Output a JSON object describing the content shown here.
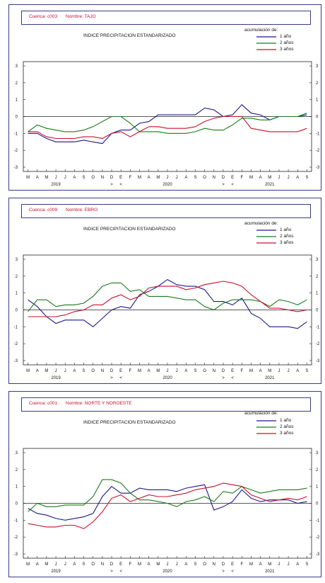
{
  "panels": [
    {
      "cuenca": "Cuenca: c003",
      "nombre": "Nombre: TAJO",
      "title": "INDICE PRECIPITACION ESTANDARIZADO",
      "legend_title": "acumulación de:",
      "chart_data": {
        "type": "line",
        "categories": [
          "M",
          "A",
          "M",
          "J",
          "J",
          "A",
          "S",
          "O",
          "N",
          "D",
          "E",
          "F",
          "M",
          "A",
          "M",
          "J",
          "J",
          "A",
          "S",
          "O",
          "N",
          "D",
          "E",
          "F",
          "M",
          "A",
          "M",
          "J",
          "J",
          "A",
          "S"
        ],
        "years": [
          "2019",
          "2020",
          "2021"
        ],
        "markers": [
          ">",
          "<",
          ">",
          "<"
        ],
        "ylim": [
          -3,
          3
        ],
        "yticks": [
          "3",
          "2",
          "1",
          "0",
          "-1",
          "-2",
          "-3"
        ],
        "series": [
          {
            "name": "1 año",
            "color": "#1a1a8c",
            "values": [
              -1.0,
              -1.0,
              -1.3,
              -1.5,
              -1.5,
              -1.5,
              -1.4,
              -1.5,
              -1.6,
              -1.0,
              -0.8,
              -0.8,
              -0.4,
              -0.3,
              0.1,
              0.1,
              0.1,
              0.1,
              0.1,
              0.5,
              0.4,
              0.0,
              0.1,
              0.7,
              0.2,
              0.1,
              -0.2,
              0.0,
              0.0,
              0.0,
              0.1
            ]
          },
          {
            "name": "2 años",
            "color": "#1a7a1a",
            "values": [
              -0.9,
              -0.5,
              -0.7,
              -0.8,
              -0.9,
              -0.9,
              -0.8,
              -0.6,
              -0.3,
              0.0,
              0.0,
              -0.4,
              -0.9,
              -0.9,
              -0.9,
              -1.0,
              -1.0,
              -1.0,
              -0.9,
              -0.7,
              -0.8,
              -0.8,
              -0.5,
              -0.1,
              -0.1,
              -0.2,
              -0.2,
              0.0,
              0.0,
              0.0,
              0.2
            ]
          },
          {
            "name": "3 años",
            "color": "#c8102e",
            "values": [
              -0.9,
              -0.9,
              -1.2,
              -1.3,
              -1.3,
              -1.3,
              -1.2,
              -1.2,
              -1.3,
              -1.0,
              -0.9,
              -1.2,
              -0.9,
              -0.6,
              -0.6,
              -0.7,
              -0.7,
              -0.7,
              -0.6,
              -0.3,
              -0.1,
              0.0,
              0.0,
              0.0,
              -0.7,
              -0.8,
              -0.9,
              -0.9,
              -0.9,
              -0.9,
              -0.7
            ]
          }
        ]
      }
    },
    {
      "cuenca": "Cuenca: c009",
      "nombre": "Nombre: EBRO",
      "title": "INDICE PRECIPITACION ESTANDARIZADO",
      "legend_title": "acumulación de:",
      "chart_data": {
        "type": "line",
        "categories": [
          "M",
          "A",
          "M",
          "J",
          "J",
          "A",
          "S",
          "O",
          "N",
          "D",
          "E",
          "F",
          "M",
          "A",
          "M",
          "J",
          "J",
          "A",
          "S",
          "O",
          "N",
          "D",
          "E",
          "F",
          "M",
          "A",
          "M",
          "J",
          "J",
          "A",
          "S"
        ],
        "years": [
          "2019",
          "2020",
          "2021"
        ],
        "markers": [
          ">",
          "<",
          ">",
          "<"
        ],
        "ylim": [
          -3,
          3
        ],
        "yticks": [
          "3",
          "2",
          "1",
          "0",
          "-1",
          "-2",
          "-3"
        ],
        "series": [
          {
            "name": "1 año",
            "color": "#1a1a8c",
            "values": [
              0.6,
              0.2,
              -0.4,
              -0.8,
              -0.6,
              -0.6,
              -0.6,
              -1.0,
              -0.5,
              0.0,
              0.2,
              0.1,
              0.9,
              1.1,
              1.4,
              1.8,
              1.5,
              1.4,
              1.4,
              1.2,
              0.5,
              0.5,
              0.3,
              0.7,
              -0.2,
              -0.5,
              -1.0,
              -1.0,
              -1.0,
              -1.1,
              -0.7
            ]
          },
          {
            "name": "2 años",
            "color": "#1a7a1a",
            "values": [
              -0.1,
              0.6,
              0.6,
              0.2,
              0.3,
              0.3,
              0.4,
              0.8,
              1.4,
              1.6,
              1.6,
              1.1,
              1.2,
              0.8,
              0.8,
              0.8,
              0.7,
              0.6,
              0.6,
              0.2,
              0.0,
              0.4,
              0.6,
              0.6,
              0.6,
              0.5,
              0.2,
              0.6,
              0.5,
              0.3,
              0.6
            ]
          },
          {
            "name": "3 años",
            "color": "#c8102e",
            "values": [
              -0.4,
              -0.4,
              -0.4,
              -0.4,
              -0.3,
              -0.1,
              0.0,
              0.3,
              0.3,
              0.7,
              0.9,
              0.6,
              0.8,
              1.3,
              1.4,
              1.4,
              1.4,
              1.2,
              1.3,
              1.5,
              1.6,
              1.7,
              1.6,
              1.4,
              0.9,
              0.5,
              0.1,
              0.1,
              0.0,
              -0.1,
              0.0
            ]
          }
        ]
      }
    },
    {
      "cuenca": "Cuenca: c001",
      "nombre": "Nombre: NORTE Y NOROESTE",
      "title": "INDICE PRECIPITACION ESTANDARIZADO",
      "legend_title": "acumulación de:",
      "chart_data": {
        "type": "line",
        "categories": [
          "M",
          "A",
          "M",
          "J",
          "J",
          "A",
          "S",
          "O",
          "N",
          "D",
          "E",
          "F",
          "M",
          "A",
          "M",
          "J",
          "J",
          "A",
          "S",
          "O",
          "N",
          "D",
          "E",
          "F",
          "M",
          "A",
          "M",
          "J",
          "J",
          "A",
          "S"
        ],
        "years": [
          "2019",
          "2020",
          "2021"
        ],
        "markers": [
          ">",
          "<",
          ">",
          "<"
        ],
        "ylim": [
          -3,
          3
        ],
        "yticks": [
          "3",
          "2",
          "1",
          "0",
          "-1",
          "-2",
          "-3"
        ],
        "series": [
          {
            "name": "1 año",
            "color": "#1a1a8c",
            "values": [
              -0.3,
              -0.6,
              -0.7,
              -0.9,
              -1.0,
              -0.9,
              -0.8,
              -0.6,
              0.4,
              1.0,
              0.6,
              0.6,
              0.9,
              0.8,
              0.8,
              0.8,
              0.7,
              0.9,
              1.0,
              1.1,
              -0.4,
              -0.2,
              0.1,
              0.8,
              0.3,
              0.1,
              0.2,
              0.2,
              0.2,
              0.0,
              0.1
            ]
          },
          {
            "name": "2 años",
            "color": "#1a7a1a",
            "values": [
              -0.5,
              0.0,
              -0.2,
              -0.2,
              -0.1,
              -0.1,
              -0.1,
              0.4,
              1.4,
              1.4,
              1.2,
              0.6,
              0.2,
              0.2,
              0.1,
              0.0,
              -0.2,
              0.1,
              0.2,
              0.4,
              0.1,
              0.7,
              0.6,
              1.0,
              0.8,
              0.6,
              0.7,
              0.8,
              0.8,
              0.8,
              0.9
            ]
          },
          {
            "name": "3 años",
            "color": "#c8102e",
            "values": [
              -1.2,
              -1.3,
              -1.4,
              -1.4,
              -1.3,
              -1.3,
              -1.5,
              -1.1,
              -0.5,
              0.3,
              0.5,
              0.1,
              0.3,
              0.5,
              0.4,
              0.4,
              0.5,
              0.6,
              0.8,
              0.9,
              1.0,
              1.2,
              1.1,
              1.0,
              0.5,
              0.3,
              0.1,
              0.2,
              0.3,
              0.2,
              0.4
            ]
          }
        ]
      }
    }
  ]
}
